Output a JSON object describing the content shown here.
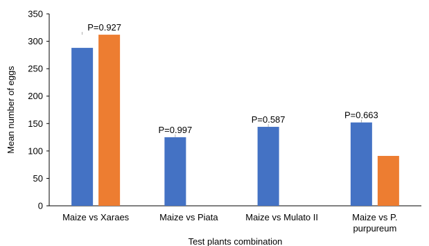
{
  "chart_data": {
    "type": "bar",
    "categories": [
      "Maize vs Xaraes",
      "Maize vs Piata",
      "Maize vs Mulato II",
      "Maize vs P. purpureum"
    ],
    "series": [
      {
        "values": [
          288,
          125,
          144,
          152
        ],
        "color": "#4472C4"
      },
      {
        "values": [
          312,
          null,
          null,
          91
        ],
        "color": "#ED7D31"
      }
    ],
    "annotations": [
      "P=0.927",
      "P=0.997",
      "P=0.587",
      "P=0.663"
    ],
    "xlabel": "Test plants combination",
    "ylabel": "Mean number of eggs",
    "ylim": [
      0,
      350
    ],
    "yticks": [
      0,
      50,
      100,
      150,
      200,
      250,
      300,
      350
    ],
    "grid": false,
    "legend": "none"
  }
}
